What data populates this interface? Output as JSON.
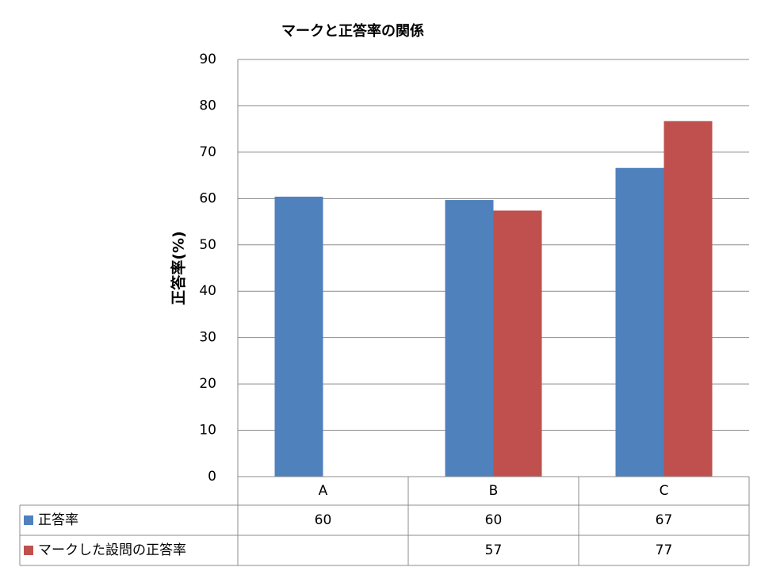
{
  "chart_data": {
    "type": "bar",
    "title": "マークと正答率の関係",
    "y_label": "正答率(%)",
    "categories": [
      "A",
      "B",
      "C"
    ],
    "series": [
      {
        "name": "正答率",
        "color": "#4f81bd",
        "values": [
          60.4,
          59.7,
          66.6
        ],
        "value_labels": [
          "60",
          "60",
          "67"
        ]
      },
      {
        "name": "マークした設問の正答率",
        "color": "#c0504d",
        "values": [
          null,
          57.4,
          76.7
        ],
        "value_labels": [
          null,
          "57",
          "77"
        ]
      }
    ],
    "ylim": [
      0,
      90
    ],
    "yticks": [
      0,
      10,
      20,
      30,
      40,
      50,
      60,
      70,
      80,
      90
    ],
    "grid": true
  }
}
